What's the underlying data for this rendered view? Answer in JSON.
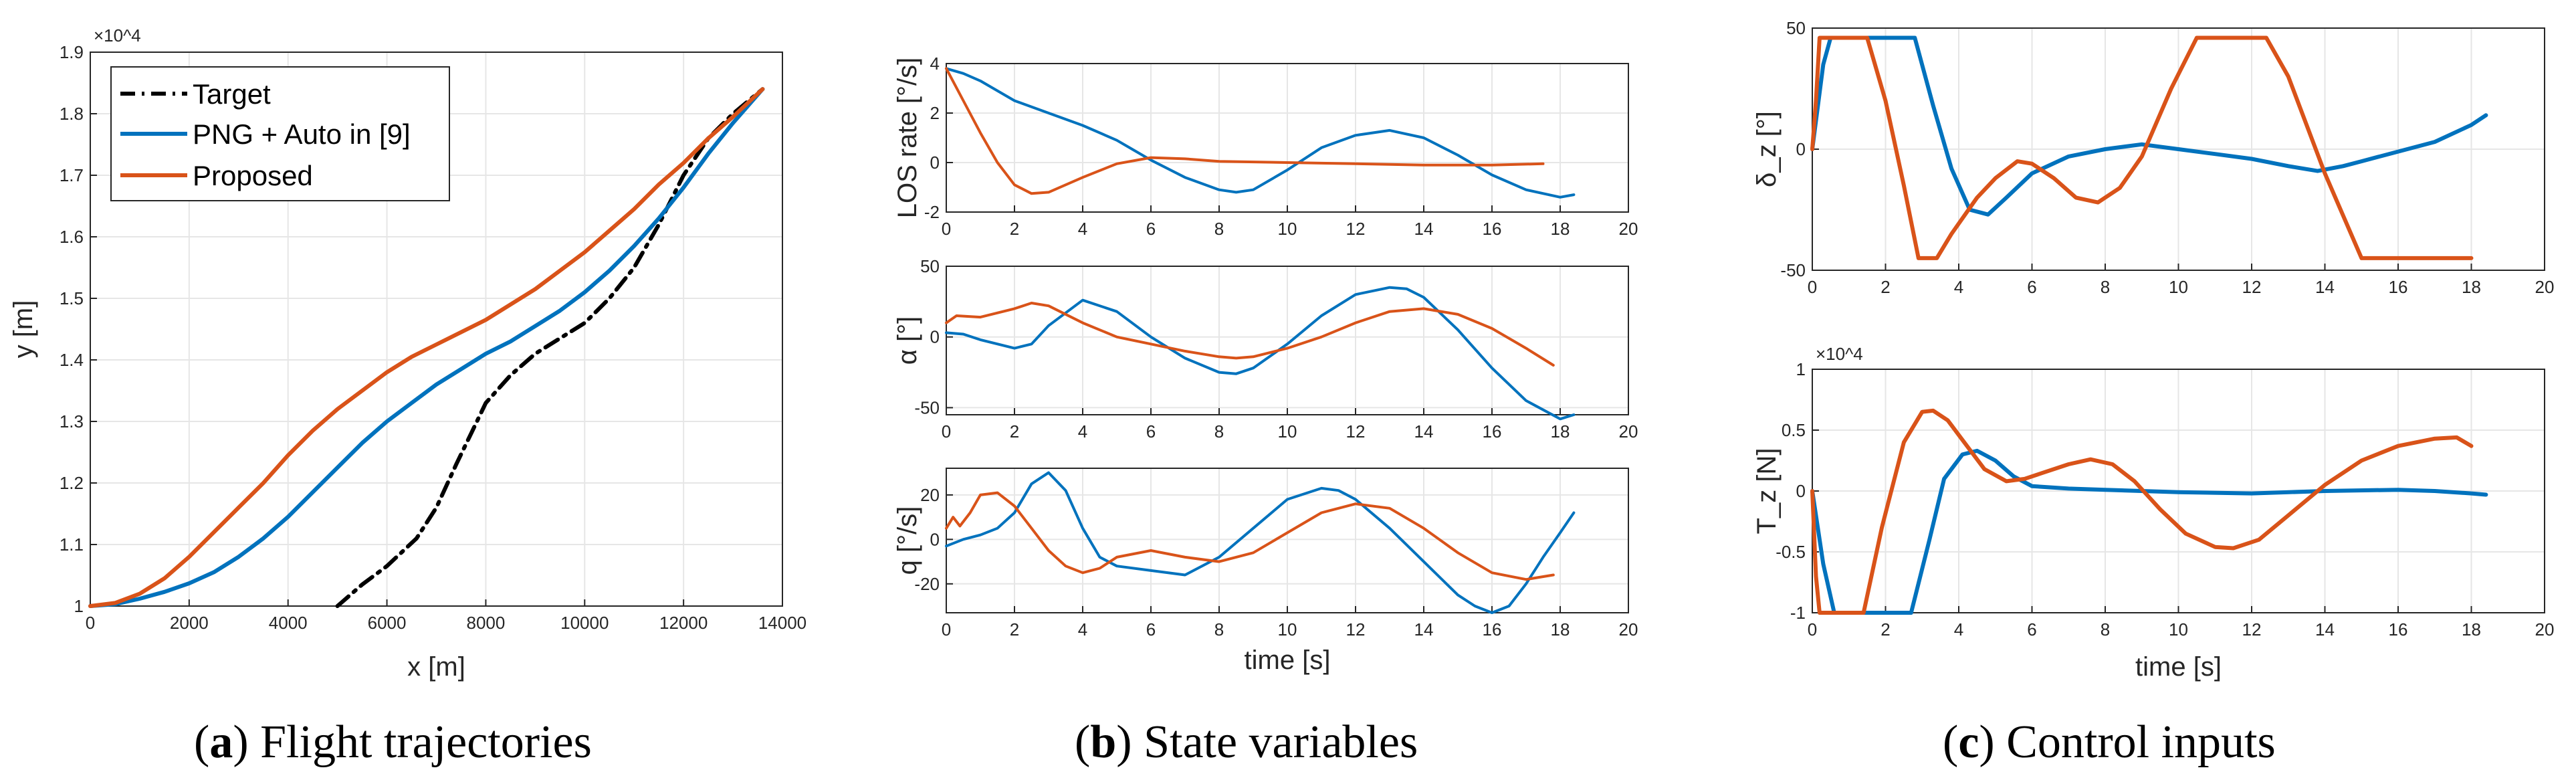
{
  "colors": {
    "target": "#000000",
    "png": "#0072BD",
    "proposed": "#D95319",
    "grid": "#e6e6e6",
    "axis": "#262626"
  },
  "captions": [
    {
      "letter": "a",
      "text": " Flight trajectories"
    },
    {
      "letter": "b",
      "text": " State variables"
    },
    {
      "letter": "c",
      "text": " Control inputs"
    }
  ],
  "chart_data": [
    {
      "id": "traj",
      "type": "line",
      "xlabel": "x [m]",
      "ylabel": "y [m]",
      "exponent": "×10^4",
      "xlim": [
        0,
        14000
      ],
      "ylim": [
        1.0,
        1.9
      ],
      "xticks": [
        0,
        2000,
        4000,
        6000,
        8000,
        10000,
        12000,
        14000
      ],
      "yticks": [
        1,
        1.1,
        1.2,
        1.3,
        1.4,
        1.5,
        1.6,
        1.7,
        1.8,
        1.9
      ],
      "grid": true,
      "legend": "top-left",
      "series": [
        {
          "name": "Target",
          "style": "dashdot",
          "x": [
            5000,
            5500,
            6000,
            6600,
            7000,
            7400,
            7700,
            8000,
            8500,
            9000,
            9500,
            10000,
            10500,
            11000,
            11500,
            12000,
            12500,
            13000,
            13600
          ],
          "y": [
            1.0,
            1.035,
            1.065,
            1.11,
            1.16,
            1.23,
            1.28,
            1.33,
            1.375,
            1.41,
            1.435,
            1.46,
            1.5,
            1.55,
            1.62,
            1.7,
            1.76,
            1.8,
            1.84
          ]
        },
        {
          "name": "PNG + Auto in [9]",
          "style": "solid",
          "x": [
            0,
            500,
            1000,
            1500,
            2000,
            2500,
            3000,
            3500,
            4000,
            4500,
            5000,
            5500,
            6000,
            6500,
            7000,
            7500,
            8000,
            8500,
            9000,
            9500,
            10000,
            10500,
            11000,
            11500,
            12000,
            12500,
            13000,
            13600
          ],
          "y": [
            1.0,
            1.003,
            1.012,
            1.023,
            1.037,
            1.055,
            1.08,
            1.11,
            1.145,
            1.185,
            1.225,
            1.265,
            1.3,
            1.33,
            1.36,
            1.385,
            1.41,
            1.43,
            1.455,
            1.48,
            1.51,
            1.545,
            1.585,
            1.63,
            1.68,
            1.735,
            1.785,
            1.84
          ]
        },
        {
          "name": "Proposed",
          "style": "solid",
          "x": [
            0,
            500,
            1000,
            1500,
            2000,
            2500,
            3000,
            3500,
            4000,
            4500,
            5000,
            5500,
            6000,
            6500,
            7000,
            7500,
            8000,
            8500,
            9000,
            9500,
            10000,
            10500,
            11000,
            11500,
            12000,
            12500,
            13000,
            13600
          ],
          "y": [
            1.0,
            1.005,
            1.02,
            1.045,
            1.08,
            1.12,
            1.16,
            1.2,
            1.245,
            1.285,
            1.32,
            1.35,
            1.38,
            1.405,
            1.425,
            1.445,
            1.465,
            1.49,
            1.515,
            1.545,
            1.575,
            1.61,
            1.645,
            1.685,
            1.72,
            1.76,
            1.795,
            1.84
          ]
        }
      ]
    },
    {
      "id": "los",
      "type": "line",
      "ylabel": "LOS rate [°/s]",
      "xlim": [
        0,
        20
      ],
      "ylim": [
        -2,
        4
      ],
      "xticks": [
        0,
        2,
        4,
        6,
        8,
        10,
        12,
        14,
        16,
        18,
        20
      ],
      "yticks": [
        -2,
        0,
        2,
        4
      ],
      "grid": true,
      "series": [
        {
          "name": "",
          "color": "png",
          "x": [
            0,
            0.5,
            1,
            2,
            3,
            4,
            5,
            5.5,
            6,
            7,
            8,
            8.5,
            9,
            10,
            11,
            12,
            13,
            14,
            15,
            16,
            17,
            18,
            18.4
          ],
          "y": [
            3.8,
            3.6,
            3.3,
            2.5,
            2.0,
            1.5,
            0.9,
            0.5,
            0.1,
            -0.6,
            -1.1,
            -1.2,
            -1.1,
            -0.3,
            0.6,
            1.1,
            1.3,
            1.0,
            0.3,
            -0.5,
            -1.1,
            -1.4,
            -1.3
          ]
        },
        {
          "name": "",
          "color": "proposed",
          "x": [
            0,
            0.5,
            1,
            1.5,
            2,
            2.5,
            3,
            4,
            5,
            6,
            7,
            8,
            10,
            12,
            14,
            16,
            17.5
          ],
          "y": [
            3.8,
            2.5,
            1.2,
            0.0,
            -0.9,
            -1.25,
            -1.2,
            -0.6,
            -0.05,
            0.2,
            0.15,
            0.05,
            0.0,
            -0.05,
            -0.1,
            -0.1,
            -0.05
          ]
        }
      ]
    },
    {
      "id": "alpha",
      "type": "line",
      "ylabel": "α [°]",
      "xlim": [
        0,
        20
      ],
      "ylim": [
        -55,
        50
      ],
      "xticks": [
        0,
        2,
        4,
        6,
        8,
        10,
        12,
        14,
        16,
        18,
        20
      ],
      "yticks": [
        -50,
        0,
        50
      ],
      "grid": true,
      "series": [
        {
          "name": "",
          "color": "png",
          "x": [
            0,
            0.5,
            1,
            2,
            2.5,
            3,
            4,
            5,
            6,
            7,
            8,
            8.5,
            9,
            10,
            11,
            12,
            13,
            13.5,
            14,
            15,
            16,
            17,
            18,
            18.4
          ],
          "y": [
            3,
            2,
            -2,
            -8,
            -5,
            8,
            26,
            18,
            0,
            -15,
            -25,
            -26,
            -22,
            -5,
            15,
            30,
            35,
            34,
            28,
            5,
            -22,
            -45,
            -58,
            -55
          ]
        },
        {
          "name": "",
          "color": "proposed",
          "x": [
            0,
            0.3,
            1,
            2,
            2.5,
            3,
            4,
            5,
            6,
            7,
            8,
            8.5,
            9,
            10,
            11,
            12,
            13,
            14,
            15,
            16,
            17,
            17.8
          ],
          "y": [
            10,
            15,
            14,
            20,
            24,
            22,
            10,
            0,
            -5,
            -10,
            -14,
            -15,
            -14,
            -8,
            0,
            10,
            18,
            20,
            16,
            6,
            -8,
            -20
          ]
        }
      ]
    },
    {
      "id": "q",
      "type": "line",
      "ylabel": "q [°/s]",
      "xlabel": "time [s]",
      "xlim": [
        0,
        20
      ],
      "ylim": [
        -33,
        32
      ],
      "xticks": [
        0,
        2,
        4,
        6,
        8,
        10,
        12,
        14,
        16,
        18,
        20
      ],
      "yticks": [
        -20,
        0,
        20
      ],
      "grid": true,
      "series": [
        {
          "name": "",
          "color": "png",
          "x": [
            0,
            0.5,
            1,
            1.5,
            2,
            2.5,
            3,
            3.5,
            4,
            4.5,
            5,
            6,
            7,
            8,
            9,
            10,
            11,
            11.5,
            12,
            13,
            14,
            15,
            15.5,
            16,
            16.5,
            17,
            17.5,
            18,
            18.4
          ],
          "y": [
            -3,
            0,
            2,
            5,
            12,
            25,
            30,
            22,
            5,
            -8,
            -12,
            -14,
            -16,
            -8,
            5,
            18,
            23,
            22,
            18,
            5,
            -10,
            -25,
            -30,
            -33,
            -30,
            -20,
            -8,
            3,
            12
          ]
        },
        {
          "name": "",
          "color": "proposed",
          "x": [
            0,
            0.2,
            0.4,
            0.7,
            1,
            1.5,
            2,
            2.5,
            3,
            3.5,
            4,
            4.5,
            5,
            6,
            7,
            8,
            9,
            10,
            11,
            12,
            13,
            14,
            15,
            16,
            17,
            17.8
          ],
          "y": [
            5,
            10,
            6,
            12,
            20,
            21,
            15,
            5,
            -5,
            -12,
            -15,
            -13,
            -8,
            -5,
            -8,
            -10,
            -6,
            3,
            12,
            16,
            14,
            5,
            -6,
            -15,
            -18,
            -16
          ]
        }
      ]
    },
    {
      "id": "deltaz",
      "type": "line",
      "ylabel": "δ_z [°]",
      "xlim": [
        0,
        20
      ],
      "ylim": [
        -50,
        50
      ],
      "xticks": [
        0,
        2,
        4,
        6,
        8,
        10,
        12,
        14,
        16,
        18,
        20
      ],
      "yticks": [
        -50,
        0,
        50
      ],
      "grid": true,
      "series": [
        {
          "name": "",
          "color": "png",
          "x": [
            0,
            0.3,
            0.5,
            2.8,
            3.3,
            3.8,
            4.3,
            4.8,
            5.3,
            6,
            7,
            8,
            9,
            10,
            11,
            12,
            13,
            13.8,
            14.5,
            15,
            16,
            17,
            18,
            18.4
          ],
          "y": [
            0,
            35,
            46,
            46,
            18,
            -8,
            -25,
            -27,
            -20,
            -10,
            -3,
            0,
            2,
            0,
            -2,
            -4,
            -7,
            -9,
            -7,
            -5,
            -1,
            3,
            10,
            14
          ]
        },
        {
          "name": "",
          "color": "proposed",
          "x": [
            0,
            0.1,
            0.2,
            1.5,
            2,
            2.5,
            2.9,
            3.4,
            3.8,
            4.5,
            5,
            5.6,
            6,
            6.6,
            7.2,
            7.8,
            8.4,
            9,
            9.8,
            10.5,
            12.4,
            13,
            14,
            15,
            16,
            18
          ],
          "y": [
            0,
            20,
            46,
            46,
            20,
            -15,
            -45,
            -45,
            -35,
            -20,
            -12,
            -5,
            -6,
            -12,
            -20,
            -22,
            -16,
            -3,
            25,
            46,
            46,
            30,
            -10,
            -45,
            -45,
            -45
          ]
        }
      ]
    },
    {
      "id": "tz",
      "type": "line",
      "ylabel": "T_z [N]",
      "xlabel": "time [s]",
      "exponent": "×10^4",
      "xlim": [
        0,
        20
      ],
      "ylim": [
        -1,
        1
      ],
      "xticks": [
        0,
        2,
        4,
        6,
        8,
        10,
        12,
        14,
        16,
        18,
        20
      ],
      "yticks": [
        -1,
        -0.5,
        0,
        0.5,
        1
      ],
      "grid": true,
      "series": [
        {
          "name": "",
          "color": "png",
          "x": [
            0,
            0.3,
            0.6,
            2.7,
            3.2,
            3.6,
            4.1,
            4.5,
            5,
            5.5,
            6,
            7,
            8,
            10,
            12,
            14,
            16,
            17,
            18,
            18.4
          ],
          "y": [
            0,
            -0.6,
            -1.0,
            -1.0,
            -0.4,
            0.1,
            0.3,
            0.33,
            0.25,
            0.12,
            0.04,
            0.02,
            0.01,
            -0.01,
            -0.02,
            0.0,
            0.01,
            0.0,
            -0.02,
            -0.03
          ]
        },
        {
          "name": "",
          "color": "proposed",
          "x": [
            0,
            0.1,
            0.2,
            1.4,
            1.9,
            2.5,
            3.0,
            3.3,
            3.7,
            4.2,
            4.7,
            5.3,
            5.8,
            6.3,
            7,
            7.6,
            8.2,
            8.8,
            9.5,
            10.2,
            11,
            11.5,
            12.2,
            13,
            14,
            15,
            16,
            17,
            17.6,
            18
          ],
          "y": [
            0,
            -0.7,
            -1.0,
            -1.0,
            -0.3,
            0.4,
            0.65,
            0.66,
            0.58,
            0.38,
            0.18,
            0.08,
            0.1,
            0.15,
            0.22,
            0.26,
            0.22,
            0.08,
            -0.15,
            -0.35,
            -0.46,
            -0.47,
            -0.4,
            -0.2,
            0.05,
            0.25,
            0.37,
            0.43,
            0.44,
            0.37
          ]
        }
      ]
    }
  ]
}
